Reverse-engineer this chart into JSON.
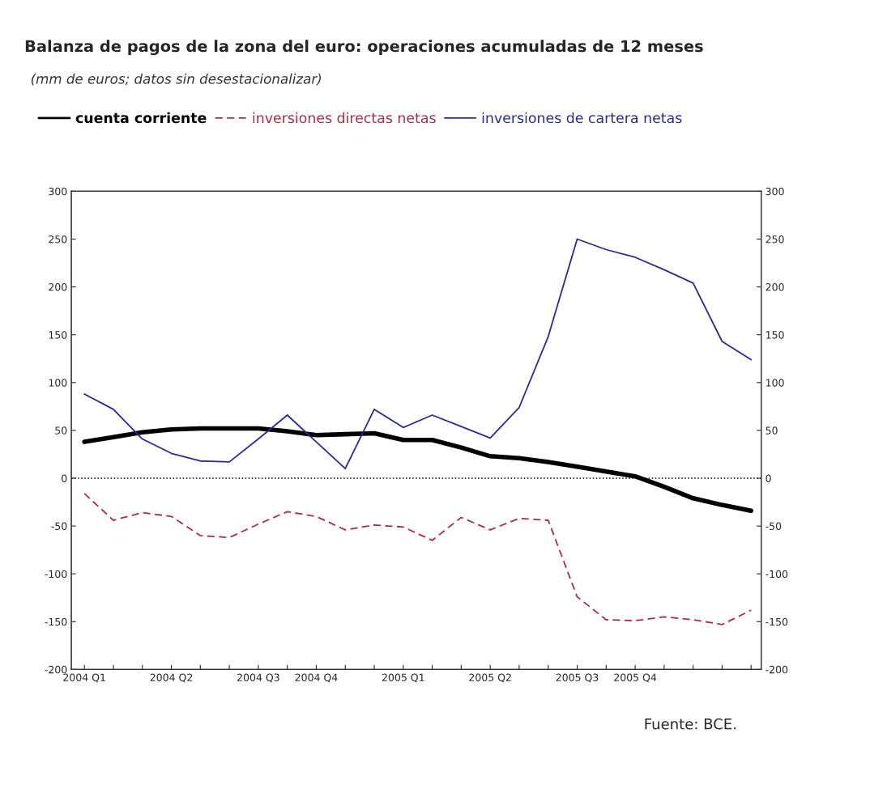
{
  "chart_data": {
    "type": "line",
    "title": "Balanza de pagos de la zona del euro: operaciones acumuladas de 12 meses",
    "subtitle": "(mm de euros; datos sin desestacionalizar)",
    "categories": [
      "2004 Q1",
      null,
      null,
      "2004 Q2",
      null,
      null,
      "2004 Q3",
      null,
      "2004 Q4",
      null,
      null,
      "2005 Q1",
      null,
      null,
      "2005 Q2",
      null,
      null,
      "2005 Q3",
      null,
      "2005 Q4",
      null,
      null,
      null,
      null
    ],
    "ylim": [
      -200,
      300
    ],
    "yticks": [
      -200,
      -150,
      -100,
      -50,
      0,
      50,
      100,
      150,
      200,
      250,
      300
    ],
    "y2lim": [
      -200,
      300
    ],
    "y2ticks": [
      -200,
      -150,
      -100,
      -50,
      0,
      50,
      100,
      150,
      200,
      250,
      300
    ],
    "series": [
      {
        "name": "cuenta corriente",
        "color": "#000000",
        "line_style": "solid",
        "values": [
          38,
          43,
          48,
          51,
          52,
          52,
          52,
          49,
          45,
          46,
          47,
          40,
          40,
          32,
          23,
          21,
          17,
          12,
          7,
          2,
          -9,
          -21,
          -28,
          -34
        ]
      },
      {
        "name": "inversiones directas netas",
        "color": "#a03048",
        "line_style": "dashed",
        "values": [
          -16,
          -44,
          -36,
          -40,
          -60,
          -62,
          -48,
          -35,
          -40,
          -54,
          -49,
          -51,
          -65,
          -41,
          -54,
          -42,
          -44,
          -124,
          -148,
          -149,
          -145,
          -148,
          -153,
          -138
        ]
      },
      {
        "name": "inversiones de cartera netas",
        "color": "#2a2a8c",
        "line_style": "solid",
        "values": [
          88,
          72,
          41,
          26,
          18,
          17,
          41,
          66,
          38,
          10,
          72,
          53,
          66,
          54,
          42,
          74,
          148,
          250,
          239,
          231,
          218,
          204,
          143,
          124
        ]
      }
    ],
    "ref_lines": [
      {
        "axis": "y",
        "value": 0,
        "color": "#000000",
        "line_style": "dotted"
      }
    ],
    "grid": false,
    "legend": "top",
    "marker": "none",
    "annotations": [
      "Fuente: BCE."
    ]
  }
}
